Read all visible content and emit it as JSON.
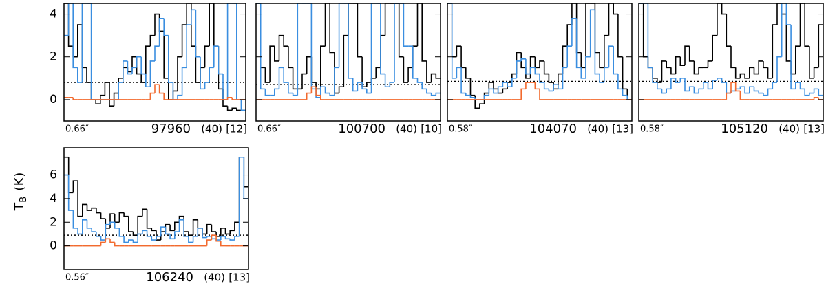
{
  "chart_data": [
    {
      "type": "step",
      "ylim": [
        -1,
        4.5
      ],
      "yticks": [
        0,
        2,
        4
      ],
      "show_ytick_labels": true,
      "threshold": 0.8,
      "beam": "0.66″",
      "frequency": "97960",
      "count": "(40)",
      "index": "[12]",
      "series": [
        {
          "color": "#000000",
          "values": [
            4.5,
            2.5,
            2,
            3.5,
            1.5,
            0.8,
            0,
            -0.2,
            0.2,
            0.8,
            -0.3,
            0.3,
            1,
            1.5,
            1.3,
            2,
            1.2,
            0.8,
            2.5,
            3,
            4,
            3.2,
            1,
            0,
            0.4,
            2,
            3.5,
            4.5,
            2.5,
            0.8,
            1.5,
            2.5,
            4.5,
            2.5,
            0.5,
            -0.3,
            -0.5,
            -0.4,
            -0.5,
            -0.5
          ]
        },
        {
          "color": "#3a8ee0",
          "values": [
            3,
            4.5,
            1.5,
            0.8,
            4.5,
            4.5,
            0,
            0,
            0,
            0,
            0,
            0,
            0.8,
            1.8,
            1.2,
            1.5,
            2,
            1.2,
            0.6,
            1.8,
            2.5,
            3.8,
            3,
            0.8,
            0,
            0.2,
            1.5,
            3.5,
            4.2,
            2,
            0.5,
            0.8,
            1.5,
            2.5,
            1.2,
            0,
            4.5,
            4.5,
            0,
            -0.5
          ]
        },
        {
          "color": "#f26a2e",
          "values": [
            0.1,
            0.1,
            0,
            0,
            0,
            0,
            0,
            0,
            0,
            0,
            0,
            0,
            0,
            0,
            0,
            0,
            0,
            0,
            0,
            0.3,
            0.7,
            0.3,
            0,
            0,
            0,
            0,
            0,
            0,
            0,
            0,
            0,
            0,
            0,
            0,
            0,
            0,
            0.1,
            0,
            0,
            0
          ]
        }
      ]
    },
    {
      "type": "step",
      "ylim": [
        -1,
        4.5
      ],
      "yticks": [
        0,
        2,
        4
      ],
      "show_ytick_labels": false,
      "threshold": 0.7,
      "beam": "0.66″",
      "frequency": "100700",
      "count": "(40)",
      "index": "[10]",
      "series": [
        {
          "color": "#000000",
          "values": [
            4.5,
            1.5,
            0.8,
            2.5,
            1.8,
            3,
            2.5,
            1.5,
            0.5,
            0.5,
            1.2,
            2,
            0.8,
            0.5,
            2.5,
            4.5,
            2.2,
            0.3,
            0.6,
            3,
            4.5,
            4.5,
            2,
            0.6,
            0.8,
            1,
            1.5,
            3,
            4.5,
            4.5,
            4.5,
            2,
            0.8,
            1.5,
            2.5,
            4.5,
            1.8,
            0.8,
            1.2,
            1
          ]
        },
        {
          "color": "#3a8ee0",
          "values": [
            4.5,
            0.5,
            0.2,
            0.2,
            0.5,
            1.5,
            0.8,
            0.3,
            0.2,
            4.5,
            4.5,
            4.5,
            0.5,
            0.1,
            0.6,
            0.3,
            0.2,
            1.5,
            4.5,
            4.5,
            1,
            0.4,
            0.8,
            0.5,
            0.3,
            4.5,
            4.5,
            1.2,
            0.6,
            0.8,
            4.5,
            4.5,
            2.5,
            2.5,
            1,
            0.8,
            0.5,
            0.3,
            0.2,
            0.3
          ]
        },
        {
          "color": "#f26a2e",
          "values": [
            0,
            0,
            0,
            0,
            0,
            0,
            0,
            0,
            0,
            0,
            0,
            0.3,
            0.6,
            0.2,
            0,
            0,
            0,
            0,
            0,
            0,
            0,
            0,
            0,
            0,
            0,
            0,
            0,
            0,
            0,
            0,
            0,
            0,
            0,
            0,
            0,
            0,
            0,
            0,
            0,
            0
          ]
        }
      ]
    },
    {
      "type": "step",
      "ylim": [
        -1,
        4.5
      ],
      "yticks": [
        0,
        2,
        4
      ],
      "show_ytick_labels": false,
      "threshold": 0.85,
      "beam": "0.58″",
      "frequency": "104070",
      "count": "(40)",
      "index": "[13]",
      "series": [
        {
          "color": "#000000",
          "values": [
            4.5,
            2,
            2.5,
            1.5,
            1,
            0.2,
            -0.4,
            -0.2,
            0.3,
            0.8,
            0.5,
            0.3,
            0.5,
            0.8,
            1.2,
            2.2,
            1.5,
            1,
            2,
            1.5,
            1.8,
            1.2,
            0.8,
            0.5,
            1.2,
            2.5,
            3.5,
            4.5,
            2.2,
            1.5,
            4.5,
            4.5,
            2.2,
            1.5,
            3,
            4.5,
            4,
            2,
            0.5,
            0
          ]
        },
        {
          "color": "#3a8ee0",
          "values": [
            4.5,
            1,
            1.5,
            0.3,
            0.2,
            0.1,
            0,
            0,
            0.2,
            0.5,
            0.3,
            0.6,
            0.8,
            0.6,
            1,
            1.8,
            1.9,
            1.2,
            1.5,
            1.2,
            0.8,
            0.5,
            0.4,
            0.7,
            0.5,
            1.5,
            2.5,
            3.8,
            1.5,
            1,
            2,
            4.2,
            1.2,
            0.8,
            1.5,
            2.5,
            1.2,
            0.5,
            0.2,
            0
          ]
        },
        {
          "color": "#f26a2e",
          "values": [
            0,
            0,
            0,
            0,
            0,
            0,
            0,
            0,
            0,
            0,
            0,
            0,
            0,
            0,
            0,
            0,
            0.5,
            0.8,
            0.8,
            0.5,
            0,
            0,
            0,
            0,
            0,
            0,
            0,
            0,
            0,
            0,
            0,
            0,
            0,
            0,
            0,
            0,
            0,
            0,
            0,
            0
          ]
        }
      ]
    },
    {
      "type": "step",
      "ylim": [
        -1,
        4.5
      ],
      "yticks": [
        0,
        2,
        4
      ],
      "show_ytick_labels": false,
      "threshold": 0.85,
      "beam": "0.58″",
      "frequency": "105120",
      "count": "(40)",
      "index": "[13]",
      "series": [
        {
          "color": "#000000",
          "values": [
            4.5,
            2,
            1.5,
            1,
            0.8,
            1.8,
            1.5,
            1.2,
            2,
            1.6,
            2.5,
            1.8,
            1.2,
            1.5,
            1.5,
            1.8,
            3,
            4.5,
            4,
            2.5,
            1.5,
            1,
            1.2,
            1,
            1.5,
            1.2,
            1.8,
            1.5,
            1,
            3.5,
            4.5,
            4,
            1.8,
            1.2,
            2.5,
            4.5,
            2.5,
            1,
            1.5,
            3.5
          ]
        },
        {
          "color": "#3a8ee0",
          "values": [
            4.5,
            4.5,
            1.5,
            0.8,
            0.5,
            0.3,
            0.5,
            1,
            0.8,
            1,
            0.4,
            0.6,
            0.3,
            0.5,
            0.8,
            0.5,
            0.9,
            1,
            0.8,
            0.3,
            0.4,
            0.5,
            0.6,
            0.3,
            0.6,
            0.4,
            0.3,
            0.2,
            0.5,
            0.8,
            2,
            4.5,
            3.5,
            0.5,
            0.8,
            0.5,
            0.2,
            0.3,
            0.5,
            0.2
          ]
        },
        {
          "color": "#f26a2e",
          "values": [
            0,
            0,
            0,
            0,
            0,
            0,
            0,
            0,
            0,
            0,
            0,
            0,
            0,
            0,
            0,
            0,
            0,
            0,
            0,
            0.3,
            0.8,
            0.4,
            0,
            0,
            0,
            0,
            0,
            0,
            0,
            0,
            0,
            0,
            0,
            0,
            0,
            0,
            0,
            0,
            0.1,
            0
          ]
        }
      ]
    },
    {
      "type": "step",
      "ylim": [
        -2,
        8.3
      ],
      "yticks": [
        0,
        2,
        4,
        6
      ],
      "show_ytick_labels": true,
      "threshold": 0.9,
      "beam": "0.56″",
      "frequency": "106240",
      "count": "(40)",
      "index": "[13]",
      "ylabel": "T",
      "ylabel_sub": "B",
      "ylabel_unit": "(K)",
      "series": [
        {
          "color": "#000000",
          "values": [
            7.5,
            4.5,
            5.5,
            2.5,
            3.5,
            3,
            3.2,
            2.8,
            2.3,
            1.5,
            2.7,
            2,
            2.8,
            2.5,
            1.2,
            0.9,
            2.5,
            3.1,
            1.5,
            1.3,
            0.5,
            1.2,
            1.8,
            1.3,
            2,
            2.5,
            1.2,
            0.9,
            2.2,
            1.5,
            1,
            1.8,
            1.2,
            0.8,
            1.5,
            1,
            1.3,
            2,
            7.5,
            5
          ]
        },
        {
          "color": "#3a8ee0",
          "values": [
            6,
            3,
            1.5,
            1,
            2.2,
            1.5,
            1.2,
            0.8,
            0.5,
            1.8,
            2,
            1.5,
            0.8,
            0.3,
            0.5,
            0.3,
            1,
            1.3,
            0.8,
            0.5,
            0.8,
            1.6,
            1,
            0.6,
            1.2,
            2.2,
            0.8,
            0.3,
            0.8,
            1.5,
            0.7,
            0.8,
            0.6,
            0.5,
            0.8,
            0.6,
            0.5,
            0.8,
            7.5,
            4
          ]
        },
        {
          "color": "#f26a2e",
          "values": [
            0,
            0,
            0,
            0,
            0,
            0,
            0,
            0,
            0.3,
            0.6,
            0.3,
            0,
            0,
            0,
            0,
            0,
            0,
            0,
            0,
            0,
            0,
            0,
            0,
            0,
            0,
            0,
            0,
            0,
            0,
            0,
            0,
            0.5,
            0.9,
            0.4,
            0,
            0,
            0,
            0,
            0,
            0
          ]
        }
      ]
    }
  ]
}
